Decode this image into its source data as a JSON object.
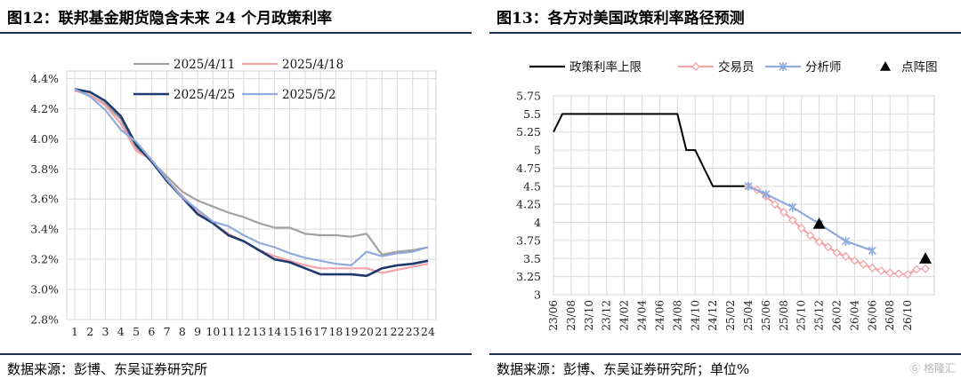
{
  "left": {
    "title": "图12：联邦基金期货隐含未来 24 个月政策利率",
    "source": "数据来源：彭博、东吴证券研究所",
    "chart_data": {
      "type": "line",
      "x": [
        1,
        2,
        3,
        4,
        5,
        6,
        7,
        8,
        9,
        10,
        11,
        12,
        13,
        14,
        15,
        16,
        17,
        18,
        19,
        20,
        21,
        22,
        23,
        24
      ],
      "x_tick_labels": [
        "1",
        "2",
        "3",
        "4",
        "5",
        "6",
        "7",
        "8",
        "9",
        "10",
        "11",
        "12",
        "13",
        "14",
        "15",
        "16",
        "17",
        "18",
        "19",
        "20",
        "21",
        "22",
        "23",
        "24"
      ],
      "y_tick_labels": [
        "2.8%",
        "3.0%",
        "3.2%",
        "3.4%",
        "3.6%",
        "3.8%",
        "4.0%",
        "4.2%",
        "4.4%"
      ],
      "ylim": [
        2.8,
        4.45
      ],
      "grid": true,
      "legend_position": "top",
      "series": [
        {
          "name": "2025/4/11",
          "color": "#a0a0a0",
          "width": 2.2,
          "values": [
            4.32,
            4.29,
            4.23,
            4.13,
            3.94,
            3.85,
            3.75,
            3.65,
            3.59,
            3.55,
            3.51,
            3.48,
            3.44,
            3.41,
            3.41,
            3.37,
            3.36,
            3.36,
            3.35,
            3.37,
            3.23,
            3.25,
            3.26,
            3.28
          ]
        },
        {
          "name": "2025/4/18",
          "color": "#f4a3a6",
          "width": 2.2,
          "values": [
            4.32,
            4.29,
            4.22,
            4.1,
            3.92,
            3.86,
            3.73,
            3.62,
            3.52,
            3.44,
            3.37,
            3.32,
            3.26,
            3.22,
            3.19,
            3.16,
            3.14,
            3.14,
            3.14,
            3.14,
            3.11,
            3.13,
            3.15,
            3.17
          ]
        },
        {
          "name": "2025/4/25",
          "color": "#1e3a6e",
          "width": 2.6,
          "values": [
            4.33,
            4.31,
            4.25,
            4.15,
            3.96,
            3.85,
            3.72,
            3.61,
            3.5,
            3.44,
            3.36,
            3.32,
            3.26,
            3.2,
            3.18,
            3.14,
            3.1,
            3.1,
            3.1,
            3.09,
            3.14,
            3.16,
            3.17,
            3.19
          ]
        },
        {
          "name": "2025/5/2",
          "color": "#8faadc",
          "width": 2.2,
          "values": [
            4.33,
            4.28,
            4.19,
            4.06,
            3.98,
            3.86,
            3.73,
            3.61,
            3.53,
            3.45,
            3.42,
            3.36,
            3.31,
            3.28,
            3.24,
            3.21,
            3.19,
            3.17,
            3.16,
            3.25,
            3.22,
            3.24,
            3.25,
            3.28
          ]
        }
      ]
    }
  },
  "right": {
    "title": "图13：各方对美国政策利率路径预测",
    "source": "数据来源：彭博、东吴证券研究所；单位%",
    "chart_data": {
      "type": "line",
      "x_tick_labels": [
        "23/06",
        "23/08",
        "23/10",
        "23/12",
        "24/02",
        "24/04",
        "24/06",
        "24/08",
        "24/10",
        "24/12",
        "25/02",
        "25/04",
        "25/06",
        "25/08",
        "25/10",
        "25/12",
        "26/02",
        "26/04",
        "26/06",
        "26/08",
        "26/10"
      ],
      "y_tick_labels": [
        "3",
        "3.25",
        "3.5",
        "3.75",
        "4",
        "4.25",
        "4.5",
        "4.75",
        "5",
        "5.25",
        "5.5",
        "5.75"
      ],
      "ylim": [
        3,
        5.75
      ],
      "xlim": [
        "2023-06",
        "2027-01"
      ],
      "grid": true,
      "legend_position": "top",
      "series": [
        {
          "name": "政策利率上限",
          "color": "#000000",
          "marker": "none",
          "points": [
            [
              "2023-06",
              5.25
            ],
            [
              "2023-07",
              5.5
            ],
            [
              "2024-08",
              5.5
            ],
            [
              "2024-09",
              5.0
            ],
            [
              "2024-10",
              5.0
            ],
            [
              "2024-11",
              4.75
            ],
            [
              "2024-12",
              4.5
            ],
            [
              "2025-04",
              4.5
            ]
          ]
        },
        {
          "name": "交易员",
          "color": "#f4a3a6",
          "marker": "diamond",
          "points": [
            [
              "2025-04",
              4.5
            ],
            [
              "2025-05",
              4.45
            ],
            [
              "2025-06",
              4.36
            ],
            [
              "2025-07",
              4.25
            ],
            [
              "2025-08",
              4.14
            ],
            [
              "2025-09",
              4.03
            ],
            [
              "2025-10",
              3.92
            ],
            [
              "2025-11",
              3.82
            ],
            [
              "2025-12",
              3.73
            ],
            [
              "2026-01",
              3.66
            ],
            [
              "2026-02",
              3.58
            ],
            [
              "2026-03",
              3.53
            ],
            [
              "2026-04",
              3.47
            ],
            [
              "2026-05",
              3.42
            ],
            [
              "2026-06",
              3.37
            ],
            [
              "2026-07",
              3.33
            ],
            [
              "2026-08",
              3.3
            ],
            [
              "2026-09",
              3.29
            ],
            [
              "2026-10",
              3.28
            ],
            [
              "2026-11",
              3.35
            ],
            [
              "2026-12",
              3.36
            ]
          ]
        },
        {
          "name": "分析师",
          "color": "#8faadc",
          "marker": "x",
          "points": [
            [
              "2025-04",
              4.5
            ],
            [
              "2025-06",
              4.39
            ],
            [
              "2025-09",
              4.21
            ],
            [
              "2025-12",
              3.98
            ],
            [
              "2026-03",
              3.74
            ],
            [
              "2026-06",
              3.61
            ]
          ]
        },
        {
          "name": "点阵图",
          "color": "#000000",
          "marker": "triangle",
          "points": [
            [
              "2025-12",
              3.98
            ],
            [
              "2026-12",
              3.5
            ]
          ]
        }
      ]
    }
  },
  "watermark": "格隆汇"
}
